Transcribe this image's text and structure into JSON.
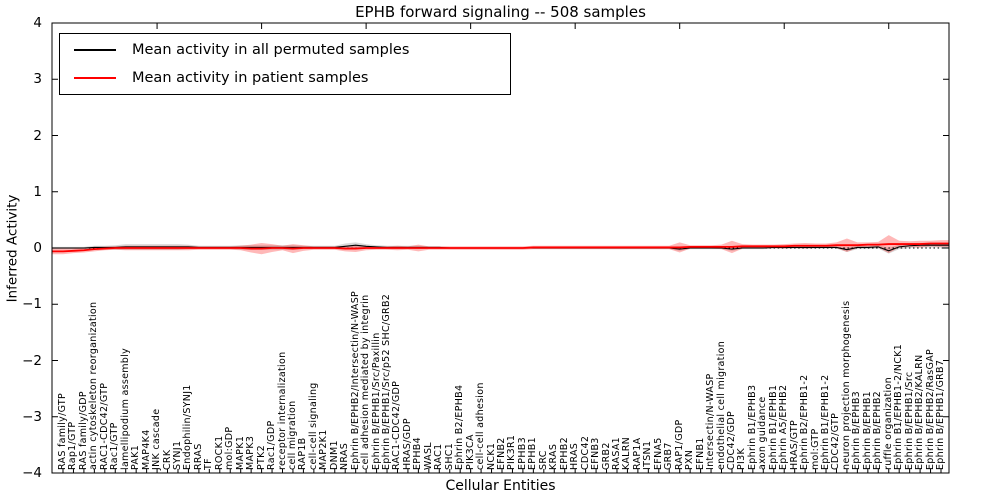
{
  "canvas": {
    "background": "#ffffff",
    "frame_color": "#000000"
  },
  "chart_data": {
    "type": "line",
    "title": "EPHB forward signaling -- 508 samples",
    "xlabel": "Cellular Entities",
    "ylabel": "Inferred Activity",
    "ylim": [
      -4,
      4
    ],
    "yticks": [
      4,
      3,
      2,
      1,
      0,
      -1,
      -2,
      -3,
      -4
    ],
    "grid": false,
    "zero_line": {
      "style": "dotted",
      "color": "#000000",
      "y": 0
    },
    "legend": {
      "position": "upper left",
      "items": [
        {
          "label": "Mean activity in all permuted samples",
          "color": "#000000"
        },
        {
          "label": "Mean activity in patient samples",
          "color": "#ff0000"
        }
      ]
    },
    "categories": [
      "RAS family/GTP",
      "Rap1/GTP",
      "RAS family/GDP",
      "actin cytoskeleton reorganization",
      "RAC1-CDC42/GTP",
      "Rac1/GTP",
      "lamellipodium assembly",
      "PAK1",
      "MAP4K4",
      "JNK cascade",
      "CRK",
      "SYNJ1",
      "Endophilin/SYNJ1",
      "RRAS",
      "TF",
      "ROCK1",
      "mol:GDP",
      "MAPK1",
      "MAPK3",
      "PTK2",
      "Rac1/GDP",
      "receptor internalization",
      "cell migration",
      "RAP1B",
      "cell-cell signaling",
      "MAP2K1",
      "DNM1",
      "NRAS",
      "Ephrin B/EPHB2/Intersectin/N-WASP",
      "cell adhesion mediated by integrin",
      "Ephrin B/EPHB1/Src/Paxillin",
      "Ephrin B/EPHB1/Src/p52 SHC/GRB2",
      "RAC1-CDC42/GDP",
      "HRAS/GDP",
      "EPHB4",
      "WASL",
      "RAC1",
      "SHC1",
      "Ephrin B2/EPHB4",
      "PIK3CA",
      "cell-cell adhesion",
      "NCK1",
      "EFNB2",
      "PIK3R1",
      "EPHB3",
      "EPHB1",
      "SRC",
      "KRAS",
      "EPHB2",
      "HRAS",
      "CDC42",
      "EFNB3",
      "GRB2",
      "RASA1",
      "KALRN",
      "RAP1A",
      "ITSN1",
      "EFNA5",
      "GRB7",
      "RAP1/GDP",
      "PXN",
      "EFNB1",
      "Intersectin/N-WASP",
      "endothelial cell migration",
      "CDC42/GDP",
      "PI3K",
      "Ephrin B1/EPHB3",
      "axon guidance",
      "Ephrin B1/EPHB1",
      "Ephrin A5/EPHB2",
      "HRAS/GTP",
      "Ephrin B2/EPHB1-2",
      "mol:GTP",
      "Ephrin B1/EPHB1-2",
      "CDC42/GTP",
      "neuron projection morphogenesis",
      "Ephrin B/EPHB3",
      "Ephrin B/EPHB1",
      "Ephrin B/EPHB2",
      "ruffle organization",
      "Ephrin B1/EPHB1-2/NCK1",
      "Ephrin B/EPHB1/Src",
      "Ephrin B/EPHB2/KALRN",
      "Ephrin B/EPHB2/RasGAP",
      "Ephrin B/EPHB1/GRB7"
    ],
    "series": [
      {
        "name": "Mean activity in all permuted samples",
        "color": "#000000",
        "band_color": "rgba(0,0,0,0.15)",
        "values": [
          0,
          0,
          0,
          0.01,
          0.01,
          0.01,
          0.02,
          0.02,
          0.02,
          0.02,
          0.02,
          0.02,
          0.02,
          0.01,
          0.01,
          0.01,
          0.01,
          0.01,
          0.01,
          0.01,
          0.01,
          0.01,
          0.01,
          0.01,
          0.01,
          0.01,
          0.01,
          0.03,
          0.05,
          0.03,
          0.02,
          0.01,
          0.01,
          0.01,
          0.01,
          0.01,
          0.01,
          0,
          0,
          0,
          0,
          0,
          0,
          0,
          0,
          0,
          0,
          0,
          0,
          0,
          0,
          0,
          0,
          0,
          0,
          0,
          0,
          0,
          0,
          -0.02,
          0,
          0,
          0,
          0,
          -0.02,
          0,
          0,
          0,
          0.01,
          0.01,
          0.01,
          0.01,
          0.01,
          0.01,
          0.01,
          -0.03,
          0.01,
          0.01,
          0.02,
          -0.05,
          0.02,
          0.04,
          0.05,
          0.05,
          0.05
        ],
        "band": [
          0.02,
          0.02,
          0.02,
          0.03,
          0.03,
          0.04,
          0.05,
          0.05,
          0.05,
          0.05,
          0.05,
          0.05,
          0.04,
          0.03,
          0.03,
          0.03,
          0.03,
          0.04,
          0.04,
          0.04,
          0.04,
          0.04,
          0.04,
          0.03,
          0.03,
          0.03,
          0.03,
          0.05,
          0.05,
          0.04,
          0.03,
          0.03,
          0.03,
          0.03,
          0.03,
          0.02,
          0.02,
          0.02,
          0.02,
          0.02,
          0.02,
          0.02,
          0.02,
          0.02,
          0.02,
          0.02,
          0.02,
          0.02,
          0.02,
          0.02,
          0.02,
          0.02,
          0.02,
          0.02,
          0.02,
          0.02,
          0.02,
          0.02,
          0.02,
          0.03,
          0.02,
          0.02,
          0.02,
          0.02,
          0.03,
          0.02,
          0.02,
          0.02,
          0.02,
          0.02,
          0.02,
          0.02,
          0.02,
          0.02,
          0.02,
          0.04,
          0.03,
          0.03,
          0.03,
          0.05,
          0.04,
          0.04,
          0.04,
          0.04,
          0.04
        ]
      },
      {
        "name": "Mean activity in patient samples",
        "color": "#ff0000",
        "band_color": "rgba(255,0,0,0.28)",
        "values": [
          -0.06,
          -0.05,
          -0.04,
          -0.02,
          -0.01,
          0,
          0,
          0,
          0,
          0,
          0,
          0,
          0,
          0,
          0,
          0,
          0,
          0,
          -0.01,
          -0.01,
          0,
          0,
          -0.01,
          0,
          0,
          0,
          0,
          -0.01,
          -0.01,
          0,
          0,
          0,
          0,
          0,
          0,
          0,
          0,
          0,
          0,
          0,
          0,
          0,
          0,
          0,
          0,
          0.01,
          0.01,
          0.01,
          0.01,
          0.01,
          0.01,
          0.01,
          0.01,
          0.01,
          0.01,
          0.01,
          0.01,
          0.01,
          0.01,
          0.01,
          0.02,
          0.02,
          0.02,
          0.02,
          0.02,
          0.03,
          0.03,
          0.03,
          0.03,
          0.03,
          0.04,
          0.04,
          0.04,
          0.04,
          0.05,
          0.05,
          0.05,
          0.06,
          0.06,
          0.07,
          0.07,
          0.07,
          0.07,
          0.08,
          0.08
        ],
        "band": [
          0.05,
          0.04,
          0.04,
          0.04,
          0.03,
          0.03,
          0.04,
          0.04,
          0.04,
          0.04,
          0.04,
          0.04,
          0.04,
          0.03,
          0.03,
          0.03,
          0.03,
          0.04,
          0.07,
          0.1,
          0.07,
          0.04,
          0.08,
          0.05,
          0.03,
          0.03,
          0.03,
          0.05,
          0.06,
          0.04,
          0.03,
          0.03,
          0.04,
          0.03,
          0.06,
          0.03,
          0.03,
          0.03,
          0.03,
          0.03,
          0.03,
          0.03,
          0.03,
          0.03,
          0.03,
          0.03,
          0.03,
          0.03,
          0.03,
          0.03,
          0.03,
          0.03,
          0.03,
          0.03,
          0.03,
          0.03,
          0.03,
          0.03,
          0.03,
          0.09,
          0.03,
          0.03,
          0.03,
          0.04,
          0.11,
          0.04,
          0.03,
          0.03,
          0.03,
          0.04,
          0.04,
          0.05,
          0.04,
          0.04,
          0.05,
          0.12,
          0.05,
          0.04,
          0.05,
          0.16,
          0.06,
          0.05,
          0.06,
          0.05,
          0.06
        ]
      }
    ]
  }
}
